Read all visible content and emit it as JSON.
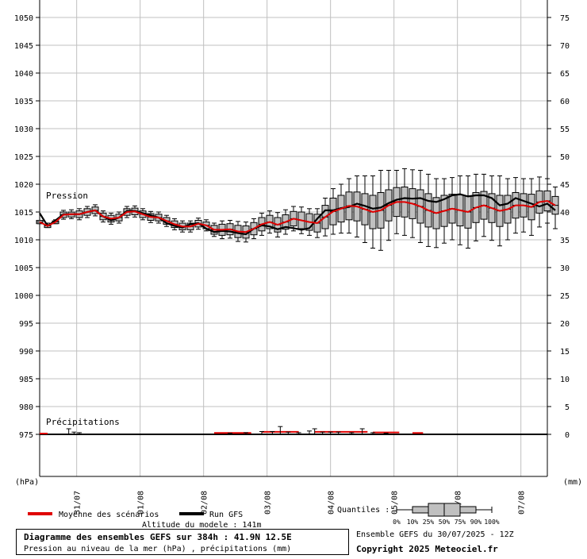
{
  "chart_data": {
    "type": "line",
    "left_axis": {
      "unit": "(hPa)",
      "min": 970,
      "max": 1050,
      "ticks": [
        975,
        980,
        985,
        990,
        995,
        1000,
        1005,
        1010,
        1015,
        1020,
        1025,
        1030,
        1035,
        1040,
        1045,
        1050
      ]
    },
    "right_axis": {
      "unit": "(mm)",
      "min": -5,
      "max": 75,
      "ticks": [
        0,
        5,
        10,
        15,
        20,
        25,
        30,
        35,
        40,
        45,
        50,
        55,
        60,
        65,
        70,
        75
      ]
    },
    "x_axis": {
      "unit": "hours",
      "range": [
        0,
        384
      ],
      "date_labels": [
        {
          "label": "31/07",
          "hour": 28
        },
        {
          "label": "01/08",
          "hour": 76
        },
        {
          "label": "02/08",
          "hour": 124
        },
        {
          "label": "03/08",
          "hour": 172
        },
        {
          "label": "04/08",
          "hour": 220
        },
        {
          "label": "05/08",
          "hour": 268
        },
        {
          "label": "06/08",
          "hour": 316
        },
        {
          "label": "07/08",
          "hour": 364
        }
      ]
    },
    "grid": true,
    "pressure": {
      "label": "Pression",
      "step_hours": 6,
      "mean": [
        1013.2,
        1012.5,
        1013.2,
        1014.5,
        1014.6,
        1014.6,
        1015.0,
        1015.3,
        1014.2,
        1013.8,
        1014.0,
        1015.0,
        1015.1,
        1014.6,
        1014.1,
        1014.0,
        1013.4,
        1012.8,
        1012.4,
        1012.4,
        1012.9,
        1012.6,
        1011.8,
        1011.8,
        1011.9,
        1011.5,
        1011.4,
        1012.0,
        1012.8,
        1013.2,
        1012.7,
        1013.2,
        1013.8,
        1013.5,
        1013.2,
        1013.0,
        1014.1,
        1015.1,
        1015.6,
        1016.1,
        1016.0,
        1015.5,
        1015.0,
        1015.3,
        1016.2,
        1016.8,
        1016.8,
        1016.5,
        1016.0,
        1015.3,
        1014.8,
        1015.2,
        1015.6,
        1015.3,
        1015.0,
        1015.8,
        1016.2,
        1015.7,
        1015.2,
        1015.5,
        1016.2,
        1016.2,
        1015.9,
        1016.8,
        1017.0,
        1016.2
      ],
      "run": [
        1014.8,
        1012.5,
        1013.5,
        1014.6,
        1014.6,
        1014.6,
        1015.0,
        1015.3,
        1014.2,
        1013.5,
        1014.0,
        1015.2,
        1015.2,
        1014.8,
        1014.4,
        1014.0,
        1013.0,
        1012.5,
        1012.2,
        1012.8,
        1013.0,
        1012.0,
        1011.4,
        1011.6,
        1011.5,
        1011.2,
        1011.0,
        1012.0,
        1012.6,
        1012.4,
        1011.9,
        1012.3,
        1012.1,
        1011.8,
        1012.1,
        1013.8,
        1015.3,
        1015.3,
        1015.7,
        1015.9,
        1016.5,
        1016.1,
        1015.6,
        1015.8,
        1016.6,
        1017.2,
        1017.5,
        1017.4,
        1017.5,
        1017.0,
        1016.8,
        1017.3,
        1018.0,
        1018.2,
        1017.8,
        1018.0,
        1018.0,
        1017.5,
        1016.2,
        1016.5,
        1017.5,
        1017.0,
        1016.5,
        1016.0,
        1016.5,
        1015.3
      ],
      "ensemble_box": [
        [
          1013,
          1013.5,
          1013.2,
          1012.9,
          1013.5,
          1012.9
        ],
        [
          1012.5,
          1013,
          1012.5,
          1012.2,
          1012.7,
          1012.2
        ],
        [
          1013.2,
          1013.6,
          1013.2,
          1012.9,
          1013.4,
          1012.9
        ],
        [
          1014.5,
          1015.3,
          1014.5,
          1013.7,
          1015.0,
          1014.0
        ],
        [
          1014.6,
          1015.4,
          1014.6,
          1013.8,
          1015.0,
          1014.1
        ],
        [
          1014.6,
          1015.6,
          1014.6,
          1013.6,
          1015.2,
          1014.0
        ],
        [
          1015.0,
          1016.0,
          1015.0,
          1014.0,
          1015.6,
          1014.4
        ],
        [
          1015.3,
          1016.3,
          1015.3,
          1014.3,
          1015.9,
          1014.7
        ],
        [
          1014.2,
          1015.2,
          1014.2,
          1013.2,
          1014.8,
          1013.6
        ],
        [
          1013.8,
          1014.8,
          1013.8,
          1012.8,
          1014.4,
          1013.2
        ],
        [
          1014.0,
          1015.0,
          1014.0,
          1013.0,
          1014.6,
          1013.4
        ],
        [
          1015.0,
          1016.0,
          1015.0,
          1014.0,
          1015.6,
          1014.4
        ],
        [
          1015.1,
          1016.1,
          1015.1,
          1014.1,
          1015.7,
          1014.5
        ],
        [
          1014.6,
          1015.6,
          1014.6,
          1013.6,
          1015.2,
          1014.0
        ],
        [
          1014.1,
          1015.1,
          1014.1,
          1013.1,
          1014.7,
          1013.5
        ],
        [
          1014.0,
          1015.0,
          1014.0,
          1013.0,
          1014.6,
          1013.4
        ],
        [
          1013.4,
          1014.4,
          1013.4,
          1012.4,
          1014.0,
          1012.8
        ],
        [
          1012.8,
          1013.8,
          1012.8,
          1011.8,
          1013.4,
          1012.2
        ],
        [
          1012.4,
          1013.4,
          1012.4,
          1011.4,
          1013.0,
          1011.8
        ],
        [
          1012.4,
          1013.4,
          1012.4,
          1011.4,
          1013.0,
          1011.8
        ],
        [
          1012.9,
          1013.9,
          1012.9,
          1011.9,
          1013.5,
          1012.3
        ],
        [
          1012.6,
          1013.6,
          1012.6,
          1011.6,
          1013.2,
          1012.0
        ],
        [
          1011.8,
          1013.0,
          1011.8,
          1010.6,
          1012.6,
          1011.0
        ],
        [
          1011.8,
          1013.4,
          1011.8,
          1010.2,
          1012.8,
          1010.8
        ],
        [
          1011.9,
          1013.5,
          1011.9,
          1010.3,
          1012.9,
          1010.9
        ],
        [
          1011.5,
          1013.3,
          1011.5,
          1009.7,
          1012.6,
          1010.4
        ],
        [
          1011.4,
          1013.2,
          1011.4,
          1009.6,
          1012.5,
          1010.3
        ],
        [
          1012.0,
          1013.8,
          1012.0,
          1010.2,
          1013.1,
          1010.9
        ],
        [
          1012.8,
          1014.8,
          1012.8,
          1010.8,
          1014.0,
          1011.6
        ],
        [
          1013.2,
          1015.2,
          1013.2,
          1011.2,
          1014.4,
          1012.0
        ],
        [
          1012.7,
          1014.9,
          1012.7,
          1010.5,
          1014.0,
          1011.4
        ],
        [
          1013.2,
          1015.4,
          1013.2,
          1011.0,
          1014.5,
          1011.9
        ],
        [
          1013.8,
          1016.0,
          1013.8,
          1011.6,
          1015.1,
          1012.5
        ],
        [
          1013.5,
          1015.9,
          1013.5,
          1011.1,
          1015.0,
          1012.0
        ],
        [
          1013.2,
          1015.6,
          1013.2,
          1010.8,
          1014.7,
          1011.7
        ],
        [
          1013.0,
          1015.6,
          1013.0,
          1010.4,
          1014.6,
          1011.4
        ],
        [
          1014.1,
          1017.5,
          1014.1,
          1010.7,
          1016.2,
          1012.0
        ],
        [
          1015.1,
          1019.2,
          1015.1,
          1011.0,
          1017.5,
          1012.7
        ],
        [
          1015.6,
          1020.0,
          1015.6,
          1011.2,
          1018.0,
          1013.2
        ],
        [
          1016.1,
          1021.0,
          1016.1,
          1011.2,
          1018.6,
          1013.6
        ],
        [
          1016.0,
          1021.5,
          1016.0,
          1010.5,
          1018.6,
          1013.4
        ],
        [
          1015.5,
          1021.5,
          1015.5,
          1009.5,
          1018.3,
          1012.7
        ],
        [
          1015.0,
          1021.5,
          1015.0,
          1008.5,
          1018.0,
          1012.0
        ],
        [
          1015.3,
          1022.5,
          1015.3,
          1008.1,
          1018.5,
          1012.1
        ],
        [
          1016.2,
          1022.5,
          1016.2,
          1009.9,
          1019.0,
          1013.4
        ],
        [
          1016.8,
          1022.5,
          1016.8,
          1011.1,
          1019.4,
          1014.2
        ],
        [
          1016.8,
          1022.8,
          1016.8,
          1010.8,
          1019.5,
          1014.1
        ],
        [
          1016.5,
          1022.6,
          1016.5,
          1010.4,
          1019.2,
          1013.8
        ],
        [
          1016.0,
          1022.5,
          1016.0,
          1009.5,
          1019.0,
          1013.0
        ],
        [
          1015.3,
          1021.8,
          1015.3,
          1008.8,
          1018.3,
          1012.3
        ],
        [
          1014.8,
          1021.0,
          1014.8,
          1008.6,
          1017.6,
          1012.0
        ],
        [
          1015.2,
          1021.0,
          1015.2,
          1009.4,
          1018.0,
          1012.4
        ],
        [
          1015.6,
          1021.2,
          1015.6,
          1010.0,
          1018.2,
          1013.0
        ],
        [
          1015.3,
          1021.5,
          1015.3,
          1009.1,
          1018.1,
          1012.5
        ],
        [
          1015.0,
          1021.5,
          1015.0,
          1008.5,
          1017.9,
          1012.1
        ],
        [
          1015.8,
          1021.8,
          1015.8,
          1009.8,
          1018.5,
          1013.1
        ],
        [
          1016.2,
          1021.8,
          1016.2,
          1010.6,
          1018.7,
          1013.7
        ],
        [
          1015.7,
          1021.5,
          1015.7,
          1009.9,
          1018.3,
          1013.1
        ],
        [
          1015.2,
          1021.5,
          1015.2,
          1008.9,
          1018.0,
          1012.4
        ],
        [
          1015.5,
          1021.0,
          1015.5,
          1010.0,
          1018.0,
          1013.0
        ],
        [
          1016.2,
          1021.2,
          1016.2,
          1011.2,
          1018.5,
          1013.9
        ],
        [
          1016.2,
          1021.0,
          1016.2,
          1011.4,
          1018.3,
          1014.1
        ],
        [
          1015.9,
          1021.0,
          1015.9,
          1010.8,
          1018.2,
          1013.6
        ],
        [
          1016.8,
          1021.3,
          1016.8,
          1012.3,
          1018.8,
          1014.8
        ],
        [
          1017.0,
          1021.0,
          1017.0,
          1013.0,
          1018.8,
          1015.2
        ],
        [
          1016.2,
          1019.5,
          1016.2,
          1012.0,
          1017.8,
          1014.6
        ]
      ]
    },
    "precipitation": {
      "label": "Précipitations",
      "mean_segments": [
        [
          0,
          6,
          0.0
        ],
        [
          132,
          160,
          0.1
        ],
        [
          168,
          196,
          0.3
        ],
        [
          208,
          248,
          0.3
        ],
        [
          252,
          272,
          0.2
        ],
        [
          282,
          290,
          0.1
        ]
      ],
      "max_whiskers": [
        [
          22,
          1.0
        ],
        [
          26,
          0.4
        ],
        [
          30,
          0.3
        ],
        [
          144,
          0.2
        ],
        [
          156,
          0.3
        ],
        [
          168,
          0.5
        ],
        [
          176,
          0.5
        ],
        [
          182,
          1.4
        ],
        [
          188,
          0.4
        ],
        [
          196,
          0.3
        ],
        [
          204,
          0.6
        ],
        [
          208,
          1.0
        ],
        [
          214,
          0.4
        ],
        [
          220,
          0.4
        ],
        [
          226,
          0.4
        ],
        [
          236,
          0.3
        ],
        [
          244,
          1.0
        ],
        [
          252,
          0.3
        ],
        [
          262,
          0.2
        ]
      ]
    }
  },
  "axis_labels": {
    "left_unit": "(hPa)",
    "right_unit": "(mm)"
  },
  "series_labels": {
    "pressure": "Pression",
    "precip": "Précipitations"
  },
  "legend": {
    "mean_label": "Moyenne des scénarios",
    "run_label": "Run GFS",
    "mean_color": "#e00000",
    "run_color": "#000000",
    "quantiles_title": "Quantiles :",
    "quantile_ticks": [
      "0%",
      "10%",
      "25%",
      "50%",
      "75%",
      "90%",
      "100%"
    ]
  },
  "altitude": "Altitude du modele : 141m",
  "title_box": {
    "line1": "Diagramme des ensembles GEFS sur 384h : 41.9N 12.5E",
    "line2": "Pression au niveau de la mer (hPa) , précipitations (mm)"
  },
  "ensemble_info": "Ensemble GEFS du 30/07/2025 - 12Z",
  "copyright": "Copyright 2025 Meteociel.fr",
  "colors": {
    "box_fill": "#c0c0c0",
    "grid": "#c0c0c0",
    "axis": "#000000"
  }
}
